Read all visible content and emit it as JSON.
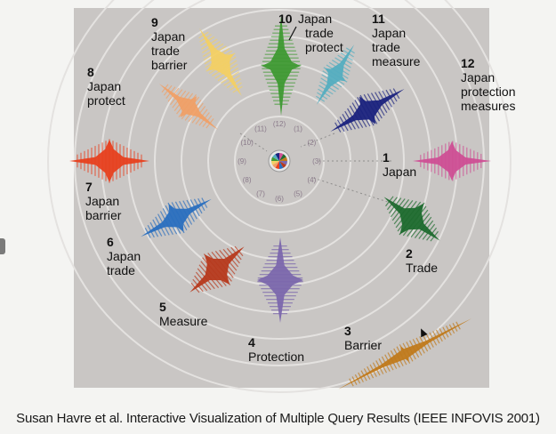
{
  "caption": "Susan Havre et al. Interactive Visualization of Multiple Query Results (IEEE INFOVIS 2001)",
  "colors": {
    "background_panel": "#c9c6c4",
    "ring": "#e2e0de",
    "text": "#111111"
  },
  "queries": [
    {
      "num": "1",
      "lines": [
        "Japan"
      ],
      "color": "#cf4f95"
    },
    {
      "num": "2",
      "lines": [
        "Trade"
      ],
      "color": "#1e6b2e"
    },
    {
      "num": "3",
      "lines": [
        "Barrier"
      ],
      "color": "#c07a1c"
    },
    {
      "num": "4",
      "lines": [
        "Protection"
      ],
      "color": "#7c68ad"
    },
    {
      "num": "5",
      "lines": [
        "Measure"
      ],
      "color": "#b73a1e"
    },
    {
      "num": "6",
      "lines": [
        "Japan",
        "trade"
      ],
      "color": "#2a6fbf"
    },
    {
      "num": "7",
      "lines": [
        "Japan",
        "barrier"
      ],
      "color": "#e8401f"
    },
    {
      "num": "8",
      "lines": [
        "Japan",
        "protect"
      ],
      "color": "#f0a067"
    },
    {
      "num": "9",
      "lines": [
        "Japan",
        "trade",
        "barrier"
      ],
      "color": "#f3d064"
    },
    {
      "num": "10",
      "lines": [
        "Japan",
        "trade",
        "protect"
      ],
      "color": "#3f9a33"
    },
    {
      "num": "11",
      "lines": [
        "Japan",
        "trade",
        "measure"
      ],
      "color": "#55aec0"
    },
    {
      "num": "12",
      "lines": [
        "Japan",
        "protection",
        "measures"
      ],
      "color": "#1b237e"
    }
  ],
  "hub_labels": [
    "(1)",
    "(2)",
    "(3)",
    "(4)",
    "(5)",
    "(6)",
    "(7)",
    "(8)",
    "(9)",
    "(10)",
    "(11)",
    "(12)"
  ]
}
